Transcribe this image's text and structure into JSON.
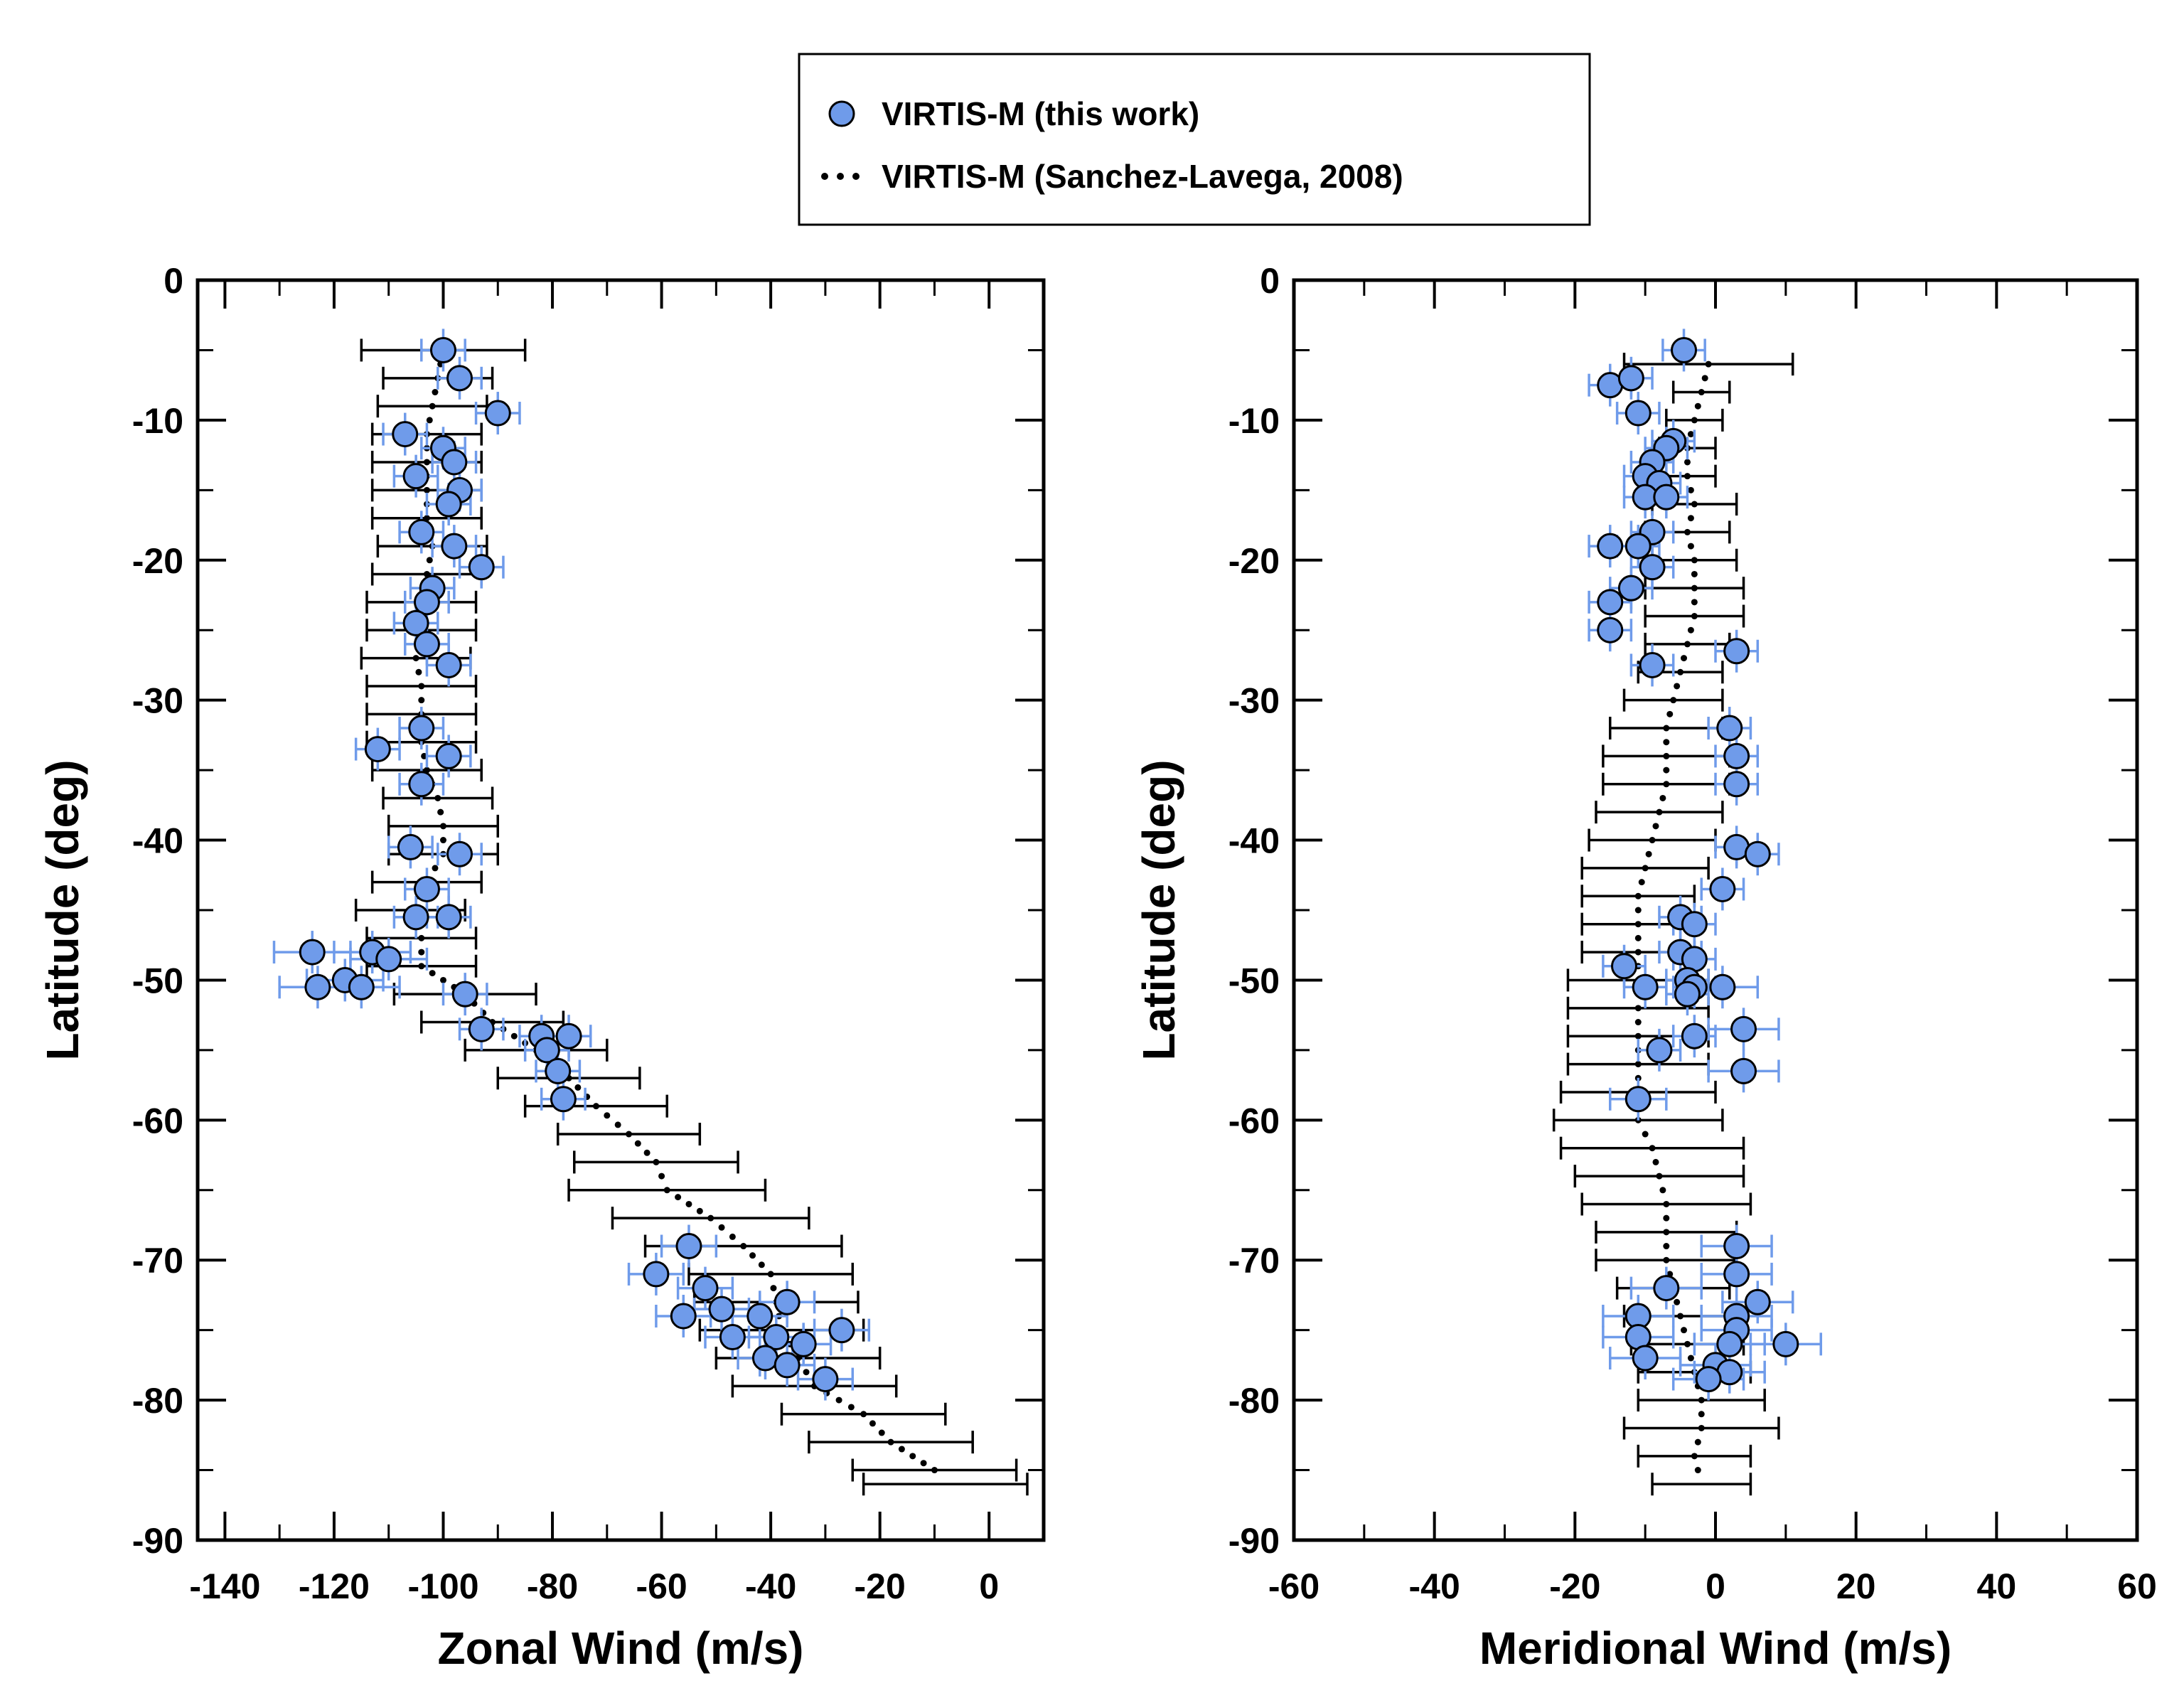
{
  "colors": {
    "marker_fill": "#6f9bea",
    "marker_stroke": "#000000",
    "error_this_work": "#6f9bea",
    "error_model": "#000000",
    "model_dots": "#000000"
  },
  "legend": {
    "entries": [
      {
        "label": "VIRTIS-M (this work)",
        "style": "marker"
      },
      {
        "label": "VIRTIS-M (Sanchez-Lavega, 2008)",
        "style": "dotted-line"
      }
    ]
  },
  "chart_data": [
    {
      "type": "scatter",
      "id": "zonal",
      "xlabel": "Zonal Wind (m/s)",
      "ylabel": "Latitude (deg)",
      "xlim": [
        -145,
        10
      ],
      "ylim": [
        -90,
        0
      ],
      "xticks": [
        -140,
        -120,
        -100,
        -80,
        -60,
        -40,
        -20,
        0
      ],
      "yticks": [
        0,
        -10,
        -20,
        -30,
        -40,
        -50,
        -60,
        -70,
        -80,
        -90
      ],
      "series": [
        {
          "name": "VIRTIS-M (this work)",
          "points": [
            [
              -100,
              -5,
              4
            ],
            [
              -97,
              -7,
              4
            ],
            [
              -90,
              -9.5,
              4
            ],
            [
              -107,
              -11,
              4
            ],
            [
              -100,
              -12,
              4
            ],
            [
              -98,
              -13,
              4
            ],
            [
              -105,
              -14,
              4
            ],
            [
              -97,
              -15,
              4
            ],
            [
              -99,
              -16,
              4
            ],
            [
              -104,
              -18,
              4
            ],
            [
              -98,
              -19,
              4
            ],
            [
              -93,
              -20.5,
              4
            ],
            [
              -102,
              -22,
              4
            ],
            [
              -103,
              -23,
              4
            ],
            [
              -105,
              -24.5,
              4
            ],
            [
              -103,
              -26,
              4
            ],
            [
              -99,
              -27.5,
              4
            ],
            [
              -104,
              -32,
              4
            ],
            [
              -112,
              -33.5,
              4
            ],
            [
              -99,
              -34,
              4
            ],
            [
              -104,
              -36,
              4
            ],
            [
              -106,
              -40.5,
              4
            ],
            [
              -97,
              -41,
              4
            ],
            [
              -103,
              -43.5,
              4
            ],
            [
              -105,
              -45.5,
              4
            ],
            [
              -99,
              -45.5,
              4
            ],
            [
              -124,
              -48,
              7
            ],
            [
              -113,
              -48,
              7
            ],
            [
              -110,
              -48.5,
              7
            ],
            [
              -123,
              -50.5,
              7
            ],
            [
              -118,
              -50,
              7
            ],
            [
              -115,
              -50.5,
              7
            ],
            [
              -96,
              -51,
              4
            ],
            [
              -93,
              -53.5,
              4
            ],
            [
              -82,
              -54,
              4
            ],
            [
              -77,
              -54,
              4
            ],
            [
              -81,
              -55,
              4
            ],
            [
              -79,
              -56.5,
              4
            ],
            [
              -78,
              -58.5,
              4
            ],
            [
              -55,
              -69,
              5
            ],
            [
              -61,
              -71,
              5
            ],
            [
              -52,
              -72,
              5
            ],
            [
              -56,
              -74,
              5
            ],
            [
              -49,
              -73.5,
              5
            ],
            [
              -37,
              -73,
              5
            ],
            [
              -42,
              -74,
              5
            ],
            [
              -27,
              -75,
              5
            ],
            [
              -47,
              -75.5,
              5
            ],
            [
              -39,
              -75.5,
              5
            ],
            [
              -34,
              -76,
              5
            ],
            [
              -41,
              -77,
              5
            ],
            [
              -37,
              -77.5,
              5
            ],
            [
              -30,
              -78.5,
              5
            ]
          ]
        },
        {
          "name": "VIRTIS-M (Sanchez-Lavega, 2008)",
          "points": [
            [
              -100,
              -5,
              15
            ],
            [
              -101,
              -7,
              10
            ],
            [
              -102,
              -9,
              10
            ],
            [
              -103,
              -11,
              10
            ],
            [
              -103,
              -13,
              10
            ],
            [
              -103,
              -15,
              10
            ],
            [
              -103,
              -17,
              10
            ],
            [
              -102,
              -19,
              10
            ],
            [
              -103,
              -21,
              10
            ],
            [
              -104,
              -23,
              10
            ],
            [
              -104,
              -25,
              10
            ],
            [
              -105,
              -27,
              10
            ],
            [
              -104,
              -29,
              10
            ],
            [
              -104,
              -31,
              10
            ],
            [
              -104,
              -33,
              10
            ],
            [
              -103,
              -35,
              10
            ],
            [
              -101,
              -37,
              10
            ],
            [
              -100,
              -39,
              10
            ],
            [
              -100,
              -41,
              10
            ],
            [
              -103,
              -43,
              10
            ],
            [
              -106,
              -45,
              10
            ],
            [
              -104,
              -47,
              10
            ],
            [
              -104,
              -49,
              10
            ],
            [
              -96,
              -51,
              13
            ],
            [
              -91,
              -53,
              13
            ],
            [
              -83,
              -55,
              13
            ],
            [
              -77,
              -57,
              13
            ],
            [
              -72,
              -59,
              13
            ],
            [
              -66,
              -61,
              13
            ],
            [
              -61,
              -63,
              15
            ],
            [
              -59,
              -65,
              18
            ],
            [
              -51,
              -67,
              18
            ],
            [
              -45,
              -69,
              18
            ],
            [
              -40,
              -71,
              15
            ],
            [
              -39,
              -73,
              15
            ],
            [
              -38,
              -75,
              15
            ],
            [
              -35,
              -77,
              15
            ],
            [
              -32,
              -79,
              15
            ],
            [
              -23,
              -81,
              15
            ],
            [
              -18,
              -83,
              15
            ],
            [
              -10,
              -85,
              15
            ],
            [
              -8,
              -86,
              15
            ]
          ]
        }
      ]
    },
    {
      "type": "scatter",
      "id": "meridional",
      "xlabel": "Meridional Wind (m/s)",
      "ylabel": "Latitude (deg)",
      "xlim": [
        -60,
        60
      ],
      "ylim": [
        -90,
        0
      ],
      "xticks": [
        -60,
        -40,
        -20,
        0,
        20,
        40,
        60
      ],
      "yticks": [
        0,
        -10,
        -20,
        -30,
        -40,
        -50,
        -60,
        -70,
        -80,
        -90
      ],
      "series": [
        {
          "name": "VIRTIS-M (this work)",
          "points": [
            [
              -4.5,
              -5,
              3
            ],
            [
              -15,
              -7.5,
              3
            ],
            [
              -12,
              -7,
              3
            ],
            [
              -11,
              -9.5,
              3
            ],
            [
              -6,
              -11.5,
              3
            ],
            [
              -7,
              -12,
              3
            ],
            [
              -9,
              -13,
              3
            ],
            [
              -10,
              -14,
              3
            ],
            [
              -8,
              -14.5,
              3
            ],
            [
              -10,
              -15.5,
              3
            ],
            [
              -7,
              -15.5,
              3
            ],
            [
              -9,
              -18,
              3
            ],
            [
              -15,
              -19,
              3
            ],
            [
              -11,
              -19,
              3
            ],
            [
              -9,
              -20.5,
              3
            ],
            [
              -12,
              -22,
              3
            ],
            [
              -15,
              -23,
              3
            ],
            [
              -15,
              -25,
              3
            ],
            [
              -9,
              -27.5,
              3
            ],
            [
              3,
              -26.5,
              3
            ],
            [
              2,
              -32,
              3
            ],
            [
              3,
              -34,
              3
            ],
            [
              3,
              -36,
              3
            ],
            [
              3,
              -40.5,
              3
            ],
            [
              6,
              -41,
              3
            ],
            [
              1,
              -43.5,
              3
            ],
            [
              -5,
              -45.5,
              3
            ],
            [
              -3,
              -46,
              3
            ],
            [
              -5,
              -48,
              3
            ],
            [
              -3,
              -48.5,
              3
            ],
            [
              -13,
              -49,
              3
            ],
            [
              -4,
              -50,
              3
            ],
            [
              -3,
              -50.5,
              3
            ],
            [
              -10,
              -50.5,
              3
            ],
            [
              -4,
              -51,
              3
            ],
            [
              1,
              -50.5,
              5
            ],
            [
              -3,
              -54,
              3
            ],
            [
              4,
              -53.5,
              5
            ],
            [
              -8,
              -55,
              3
            ],
            [
              4,
              -56.5,
              5
            ],
            [
              -11,
              -58.5,
              4
            ],
            [
              3,
              -69,
              5
            ],
            [
              -7,
              -72,
              5
            ],
            [
              3,
              -71,
              5
            ],
            [
              -11,
              -74,
              5
            ],
            [
              6,
              -73,
              5
            ],
            [
              3,
              -74,
              5
            ],
            [
              -11,
              -75.5,
              5
            ],
            [
              3,
              -75,
              5
            ],
            [
              2,
              -76,
              5
            ],
            [
              10,
              -76,
              5
            ],
            [
              -10,
              -77,
              5
            ],
            [
              0,
              -77.5,
              5
            ],
            [
              2,
              -78,
              5
            ],
            [
              -1,
              -78.5,
              5
            ]
          ]
        },
        {
          "name": "VIRTIS-M (Sanchez-Lavega, 2008)",
          "points": [
            [
              -1,
              -6,
              12
            ],
            [
              -2,
              -8,
              4
            ],
            [
              -3,
              -10,
              4
            ],
            [
              -4,
              -12,
              4
            ],
            [
              -4,
              -14,
              4
            ],
            [
              -3,
              -16,
              6
            ],
            [
              -4,
              -18,
              6
            ],
            [
              -3,
              -20,
              6
            ],
            [
              -3,
              -22,
              7
            ],
            [
              -3,
              -24,
              7
            ],
            [
              -4,
              -26,
              6
            ],
            [
              -5,
              -28,
              6
            ],
            [
              -6,
              -30,
              7
            ],
            [
              -7,
              -32,
              8
            ],
            [
              -7,
              -34,
              9
            ],
            [
              -7,
              -36,
              9
            ],
            [
              -8,
              -38,
              9
            ],
            [
              -9,
              -40,
              9
            ],
            [
              -10,
              -42,
              9
            ],
            [
              -11,
              -44,
              8
            ],
            [
              -11,
              -46,
              8
            ],
            [
              -11,
              -48,
              8
            ],
            [
              -11,
              -50,
              10
            ],
            [
              -11,
              -52,
              10
            ],
            [
              -11,
              -54,
              10
            ],
            [
              -11,
              -56,
              10
            ],
            [
              -11,
              -58,
              11
            ],
            [
              -11,
              -60,
              12
            ],
            [
              -9,
              -62,
              13
            ],
            [
              -8,
              -64,
              12
            ],
            [
              -7,
              -66,
              12
            ],
            [
              -7,
              -68,
              10
            ],
            [
              -7,
              -70,
              10
            ],
            [
              -6,
              -72,
              8
            ],
            [
              -5,
              -74,
              8
            ],
            [
              -4,
              -76,
              8
            ],
            [
              -3,
              -78,
              8
            ],
            [
              -2,
              -80,
              9
            ],
            [
              -2,
              -82,
              11
            ],
            [
              -3,
              -84,
              8
            ],
            [
              -2,
              -86,
              7
            ]
          ]
        }
      ]
    }
  ]
}
